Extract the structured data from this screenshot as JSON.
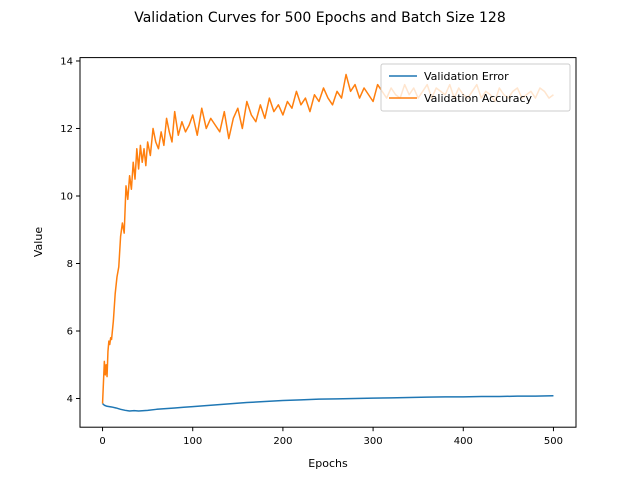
{
  "chart_data": {
    "type": "line",
    "title": "Validation Curves for 500 Epochs and Batch Size 128",
    "xlabel": "Epochs",
    "ylabel": "Value",
    "xlim": [
      -25,
      525
    ],
    "ylim": [
      3.15,
      14.1
    ],
    "xticks": [
      0,
      100,
      200,
      300,
      400,
      500
    ],
    "yticks": [
      4,
      6,
      8,
      10,
      12,
      14
    ],
    "grid": false,
    "legend_position": "top-right",
    "series": [
      {
        "name": "Validation Error",
        "color": "#1f77b4",
        "x": [
          0,
          2,
          5,
          10,
          15,
          20,
          25,
          30,
          35,
          40,
          50,
          60,
          70,
          80,
          90,
          100,
          120,
          140,
          160,
          180,
          200,
          220,
          240,
          260,
          280,
          300,
          320,
          340,
          360,
          380,
          400,
          420,
          440,
          460,
          480,
          500
        ],
        "values": [
          3.85,
          3.8,
          3.77,
          3.75,
          3.72,
          3.68,
          3.65,
          3.63,
          3.64,
          3.63,
          3.65,
          3.68,
          3.7,
          3.72,
          3.74,
          3.76,
          3.8,
          3.84,
          3.88,
          3.91,
          3.94,
          3.96,
          3.98,
          3.99,
          4.0,
          4.01,
          4.02,
          4.03,
          4.04,
          4.05,
          4.05,
          4.06,
          4.06,
          4.07,
          4.07,
          4.08
        ]
      },
      {
        "name": "Validation Accuracy",
        "color": "#ff7f0e",
        "x": [
          0,
          2,
          3,
          4,
          5,
          6,
          7,
          8,
          9,
          10,
          12,
          14,
          16,
          18,
          20,
          22,
          24,
          26,
          28,
          30,
          32,
          34,
          36,
          38,
          40,
          42,
          44,
          46,
          48,
          50,
          53,
          56,
          59,
          62,
          65,
          68,
          71,
          74,
          77,
          80,
          84,
          88,
          92,
          96,
          100,
          105,
          110,
          115,
          120,
          125,
          130,
          135,
          140,
          145,
          150,
          155,
          160,
          165,
          170,
          175,
          180,
          185,
          190,
          195,
          200,
          205,
          210,
          215,
          220,
          225,
          230,
          235,
          240,
          245,
          250,
          255,
          260,
          265,
          270,
          275,
          280,
          285,
          290,
          295,
          300,
          305,
          310,
          315,
          320,
          325,
          330,
          335,
          340,
          345,
          350,
          355,
          360,
          365,
          370,
          375,
          380,
          385,
          390,
          395,
          400,
          405,
          410,
          415,
          420,
          425,
          430,
          435,
          440,
          445,
          450,
          455,
          460,
          465,
          470,
          475,
          480,
          485,
          490,
          495,
          500
        ],
        "values": [
          3.85,
          5.1,
          4.7,
          5.0,
          4.65,
          5.4,
          5.7,
          5.6,
          5.8,
          5.75,
          6.3,
          7.1,
          7.6,
          7.9,
          8.8,
          9.2,
          8.9,
          10.3,
          9.9,
          10.6,
          10.2,
          11.0,
          10.5,
          11.4,
          10.8,
          11.5,
          11.0,
          11.4,
          10.9,
          11.6,
          11.2,
          12.0,
          11.6,
          11.4,
          11.9,
          11.5,
          12.3,
          11.9,
          11.6,
          12.5,
          11.8,
          12.2,
          11.9,
          12.1,
          12.4,
          11.8,
          12.6,
          12.0,
          12.3,
          12.1,
          11.9,
          12.5,
          11.7,
          12.3,
          12.6,
          12.0,
          12.8,
          12.4,
          12.2,
          12.7,
          12.3,
          12.9,
          12.5,
          12.7,
          12.4,
          12.8,
          12.6,
          13.1,
          12.7,
          12.9,
          12.5,
          13.0,
          12.8,
          13.2,
          12.9,
          12.7,
          13.1,
          12.9,
          13.6,
          13.1,
          13.3,
          12.9,
          13.2,
          13.0,
          12.8,
          13.3,
          13.1,
          12.9,
          13.2,
          13.0,
          12.9,
          13.3,
          13.0,
          13.2,
          12.9,
          13.1,
          13.3,
          12.9,
          13.2,
          13.1,
          13.0,
          13.3,
          12.9,
          13.2,
          13.0,
          12.9,
          13.1,
          13.3,
          12.9,
          13.1,
          13.0,
          12.8,
          13.2,
          13.0,
          12.9,
          13.1,
          13.2,
          12.9,
          13.0,
          13.1,
          12.9,
          13.2,
          13.1,
          12.9,
          13.0
        ]
      }
    ]
  }
}
